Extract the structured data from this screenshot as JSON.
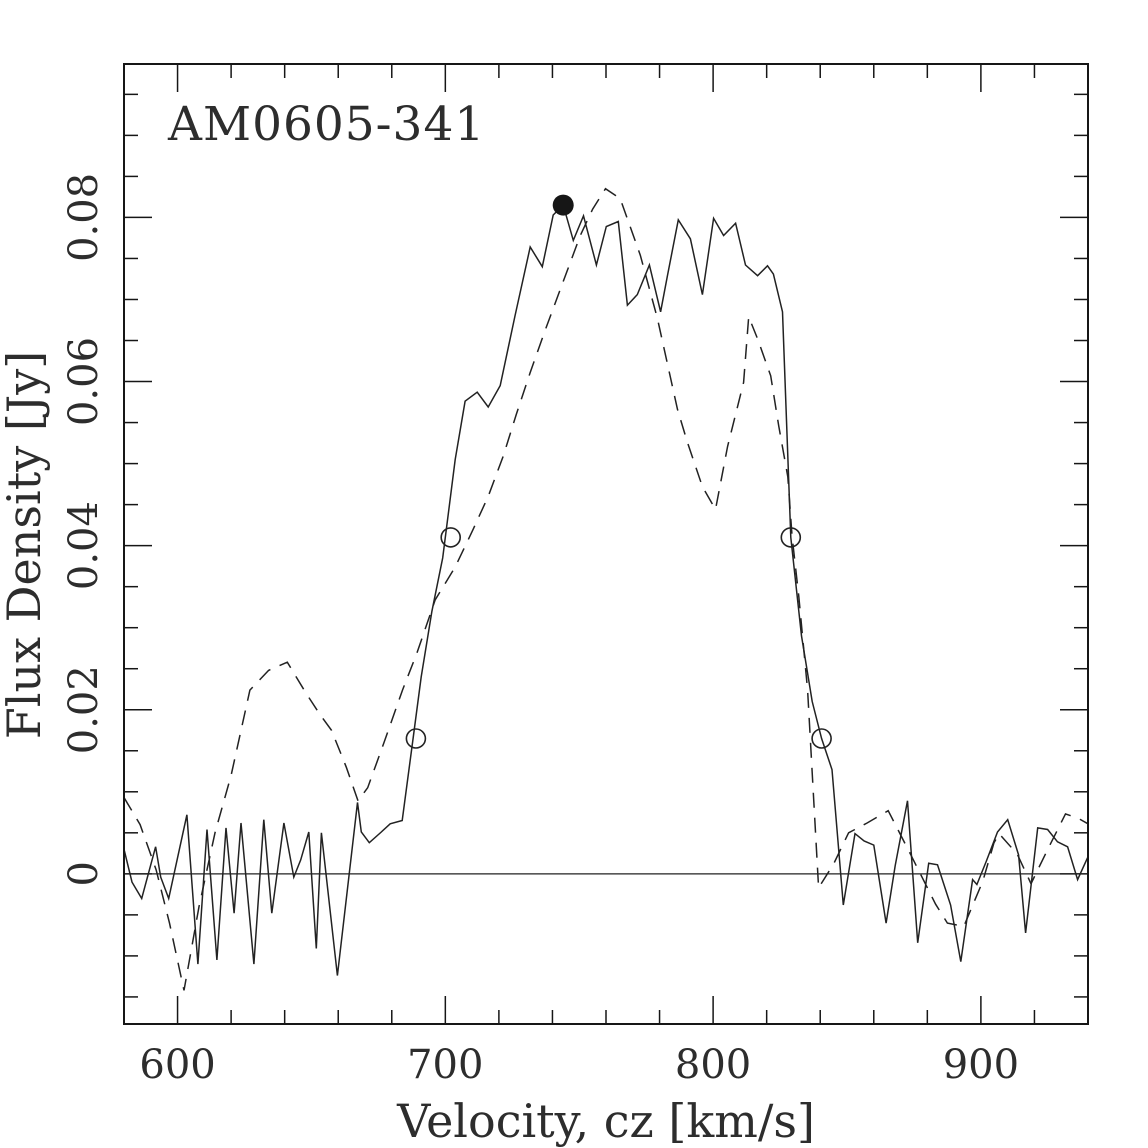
{
  "figure": {
    "title": "AM0605-341",
    "xlabel": "Velocity, cz [km/s]",
    "ylabel": "Flux Density [Jy]"
  },
  "colors": {
    "line": "#222222",
    "frame": "#161616",
    "text": "#2d2d2d",
    "background": "#ffffff"
  },
  "chart_data": {
    "type": "line",
    "title": "AM0605-341",
    "xlabel": "Velocity, cz [km/s]",
    "ylabel": "Flux Density [Jy]",
    "xlim": [
      580,
      940
    ],
    "ylim": [
      -0.0183,
      0.0987
    ],
    "grid": false,
    "legend": "none",
    "zero_line_y": 0,
    "x_major_ticks": [
      600,
      700,
      800,
      900
    ],
    "x_tick_labels": [
      "600",
      "700",
      "800",
      "900"
    ],
    "x_minor_step": 20,
    "y_major_ticks": [
      0,
      0.02,
      0.04,
      0.06,
      0.08
    ],
    "y_tick_labels": [
      "0",
      "0.02",
      "0.04",
      "0.06",
      "0.08"
    ],
    "y_minor_step": 0.005,
    "series": [
      {
        "name": "observed-spectrum-solid",
        "style": "solid",
        "x": [
          580,
          583,
          586.6,
          591.8,
          593.7,
          596.7,
          603.5,
          607.6,
          611,
          614.7,
          618.1,
          621.1,
          623.7,
          628.5,
          632.2,
          635.2,
          639.7,
          643.4,
          646,
          649,
          651.8,
          653.7,
          659.7,
          667.2,
          668.6,
          671.6,
          676.1,
          679.4,
          683.9,
          688,
          691,
          695,
          699,
          703.7,
          707.4,
          711.9,
          716,
          720.5,
          726,
          731.7,
          736.2,
          740.3,
          744,
          747.8,
          751.6,
          756.4,
          760.1,
          764.6,
          768,
          771.7,
          776.2,
          780.4,
          783,
          787,
          791.5,
          796,
          800.2,
          803.9,
          808.4,
          812.1,
          816.6,
          820.3,
          822.5,
          825.9,
          829,
          833,
          837,
          840.5,
          844.4,
          848.6,
          853,
          856.4,
          860,
          864.6,
          868,
          872.6,
          876.4,
          880.5,
          883.8,
          888.7,
          892.5,
          896.9,
          898.5,
          902,
          906.2,
          910,
          914.1,
          916.7,
          921.2,
          924.9,
          928.6,
          932.4,
          936.1,
          939.9
        ],
        "y": [
          0.003,
          -0.001,
          -0.003,
          0.0033,
          -0.0004,
          -0.003,
          0.0072,
          -0.011,
          0.0054,
          -0.0105,
          0.0056,
          -0.0048,
          0.0062,
          -0.011,
          0.0066,
          -0.0048,
          0.0062,
          -0.0004,
          0.0017,
          0.0051,
          -0.0091,
          0.005,
          -0.0124,
          0.0087,
          0.0051,
          0.0038,
          0.0051,
          0.0061,
          0.0065,
          0.0166,
          0.024,
          0.032,
          0.0385,
          0.0505,
          0.0576,
          0.0587,
          0.0569,
          0.0595,
          0.068,
          0.0764,
          0.074,
          0.0803,
          0.0815,
          0.0772,
          0.0802,
          0.0742,
          0.0789,
          0.0795,
          0.0693,
          0.0706,
          0.0742,
          0.0685,
          0.073,
          0.0797,
          0.0774,
          0.0706,
          0.0799,
          0.0778,
          0.0793,
          0.0742,
          0.0729,
          0.0741,
          0.0731,
          0.0685,
          0.041,
          0.029,
          0.021,
          0.0165,
          0.0127,
          -0.0038,
          0.0049,
          0.004,
          0.0035,
          -0.006,
          0.001,
          0.0089,
          -0.0084,
          0.0013,
          0.0011,
          -0.0038,
          -0.0107,
          -0.0007,
          -0.0013,
          0.0015,
          0.0051,
          0.0066,
          0.0023,
          -0.0072,
          0.0056,
          0.0054,
          0.0039,
          0.0033,
          -0.0007,
          0.002
        ]
      },
      {
        "name": "comparison-spectrum-dashed",
        "style": "dashed",
        "x": [
          580,
          586,
          592,
          597,
          602.4,
          608,
          614,
          620,
          627,
          634,
          641,
          648,
          653,
          657.5,
          663,
          667.4,
          671,
          677,
          684,
          689.4,
          696.2,
          700.7,
          703.7,
          710.4,
          716,
          721.6,
          726.5,
          731.7,
          737,
          743,
          750.4,
          755,
          759.8,
          765.3,
          772.8,
          779.2,
          786.7,
          790.4,
          796,
          800.9,
          805.4,
          811.4,
          813.3,
          816.6,
          821.5,
          824.5,
          827.9,
          829.5,
          832,
          835.3,
          839.4,
          845,
          850.6,
          857.5,
          865.4,
          873.7,
          883.1,
          887.5,
          893.6,
          900.7,
          904.9,
          906.8,
          913.6,
          918.7,
          925,
          931.6,
          936.2,
          940
        ],
        "y": [
          0.0093,
          0.006,
          0.0005,
          -0.006,
          -0.0142,
          -0.004,
          0.005,
          0.012,
          0.0224,
          0.0248,
          0.0258,
          0.022,
          0.0195,
          0.0175,
          0.013,
          0.0089,
          0.0105,
          0.0159,
          0.0224,
          0.0269,
          0.0334,
          0.0358,
          0.0374,
          0.042,
          0.046,
          0.0509,
          0.056,
          0.0611,
          0.066,
          0.0713,
          0.0778,
          0.081,
          0.0835,
          0.0823,
          0.0754,
          0.0677,
          0.0566,
          0.0526,
          0.0472,
          0.0444,
          0.0521,
          0.0599,
          0.0679,
          0.0652,
          0.0607,
          0.0546,
          0.0484,
          0.0411,
          0.0338,
          0.0224,
          -0.0017,
          0.0012,
          0.005,
          0.0062,
          0.0077,
          0.0024,
          -0.0037,
          -0.006,
          -0.0064,
          -0.0009,
          0.0038,
          0.0049,
          0.0024,
          -0.0012,
          0.003,
          0.0073,
          0.0068,
          0.0061
        ]
      }
    ],
    "markers": {
      "peak_filled_circle": {
        "x": 744,
        "y": 0.0815
      },
      "open_circles": [
        {
          "x": 689,
          "y": 0.0165
        },
        {
          "x": 702,
          "y": 0.041
        },
        {
          "x": 829,
          "y": 0.041
        },
        {
          "x": 840.5,
          "y": 0.0165
        }
      ]
    }
  }
}
